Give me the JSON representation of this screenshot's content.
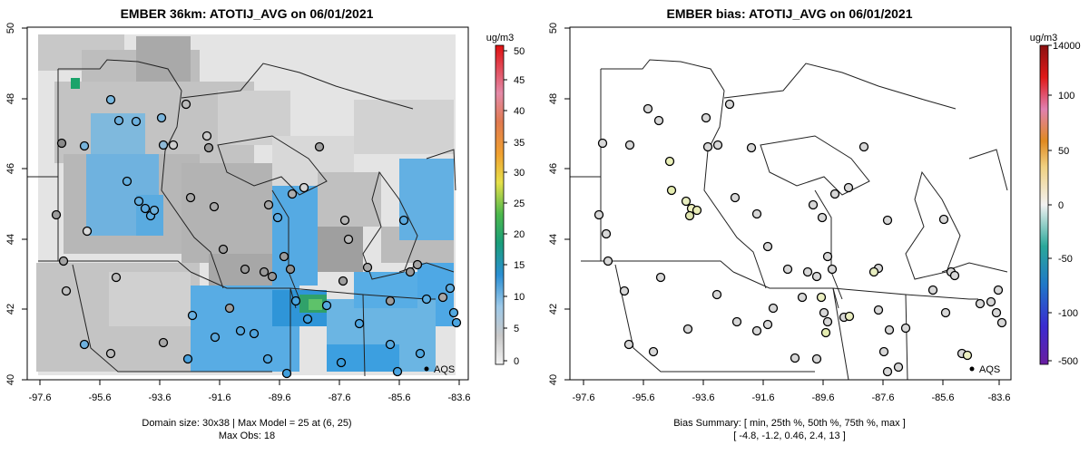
{
  "panels": [
    {
      "title": "EMBER 36km: ATOTIJ_AVG on 06/01/2021",
      "x_ticks": [
        "-97.6",
        "-95.6",
        "-93.6",
        "-91.6",
        "-89.6",
        "-87.6",
        "-85.6",
        "-83.6"
      ],
      "y_ticks": [
        "40",
        "42",
        "44",
        "46",
        "48",
        "50"
      ],
      "footer": [
        "Domain size: 30x38 | Max Model = 25 at (6, 25)",
        "Max Obs: 18"
      ],
      "legend_label": "AQS",
      "colorbar_unit": "ug/m3",
      "colorbar_ticks": [
        "0",
        "5",
        "10",
        "15",
        "20",
        "25",
        "30",
        "35",
        "40",
        "45",
        "50"
      ]
    },
    {
      "title": "EMBER bias: ATOTIJ_AVG on 06/01/2021",
      "x_ticks": [
        "-97.6",
        "-95.6",
        "-93.6",
        "-91.6",
        "-89.6",
        "-87.6",
        "-85.6",
        "-83.6"
      ],
      "y_ticks": [
        "40",
        "42",
        "44",
        "46",
        "48",
        "50"
      ],
      "footer": [
        "Bias Summary: [ min, 25th %, 50th %, 75th %, max ]",
        "[ -4.8,   -1.2,   0.46,   2.4,   13 ]"
      ],
      "legend_label": "AQS",
      "colorbar_unit": "ug/m3",
      "colorbar_ticks": [
        "-500",
        "-100",
        "-50",
        "0",
        "50",
        "100",
        "14000"
      ]
    }
  ],
  "colors": {
    "model_bg": "#e6e6e6",
    "model_mid": "#c6c6c6",
    "model_dark": "#9e9e9e",
    "model_blue": "#4aa9e6",
    "model_green": "#1aa36a",
    "site_bias": "#d9d9d9"
  }
}
